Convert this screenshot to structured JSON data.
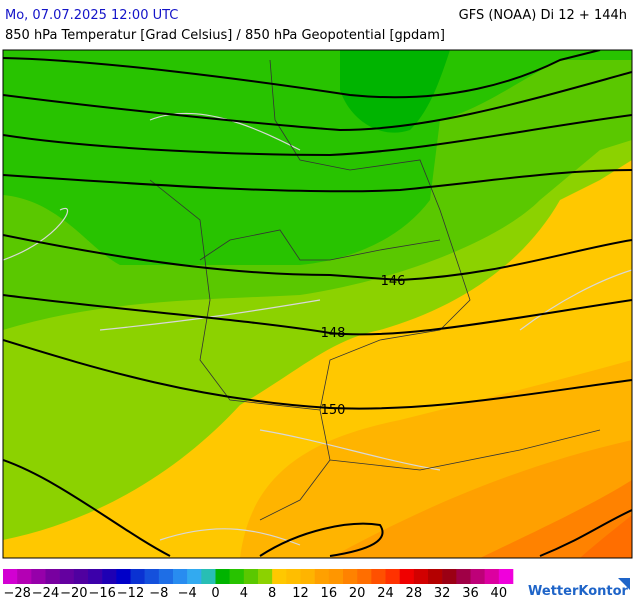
{
  "header": {
    "datetime": "Mo, 07.07.2025 12:00 UTC",
    "model": "GFS (NOAA) Di 12 + 144h",
    "subtitle": "850 hPa Temperatur [Grad Celsius] / 850 hPa Geopotential [gpdam]"
  },
  "contour_labels": [
    "146",
    "148",
    "150"
  ],
  "legend": {
    "range": [
      -30,
      42
    ],
    "colors": [
      "#d200d2",
      "#b400b4",
      "#9600aa",
      "#7800a0",
      "#6400a0",
      "#5000a0",
      "#3c00aa",
      "#1e00b4",
      "#0000c8",
      "#0a32d2",
      "#1450dc",
      "#1e6ee6",
      "#288cf0",
      "#32aaf0",
      "#28beb4",
      "#00b400",
      "#28c300",
      "#5ac800",
      "#8cd200",
      "#ffc800",
      "#ffbe00",
      "#ffb400",
      "#ffa000",
      "#ff9600",
      "#ff8200",
      "#ff6e00",
      "#ff5000",
      "#ff3200",
      "#f00000",
      "#d20000",
      "#b40000",
      "#9b0014",
      "#a00046",
      "#be0078",
      "#dc00a0",
      "#f000dc"
    ],
    "ticks": [
      {
        "value": -28,
        "label": "−28"
      },
      {
        "value": -24,
        "label": "−24"
      },
      {
        "value": -20,
        "label": "−20"
      },
      {
        "value": -16,
        "label": "−16"
      },
      {
        "value": -12,
        "label": "−12"
      },
      {
        "value": -8,
        "label": "−8"
      },
      {
        "value": -4,
        "label": "−4"
      },
      0,
      4,
      8,
      12,
      16,
      20,
      24,
      28,
      32,
      36,
      40
    ]
  },
  "brand": "WetterKontor"
}
